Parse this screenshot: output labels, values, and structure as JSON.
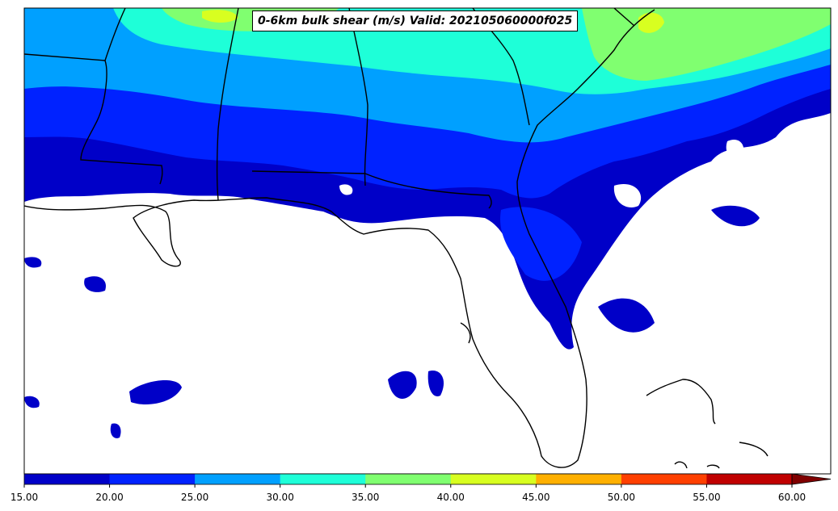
{
  "title": "0-6km bulk shear (m/s) Valid: 202105060000f025",
  "colorbar": {
    "ticks": [
      "15.00",
      "20.00",
      "25.00",
      "30.00",
      "35.00",
      "40.00",
      "45.00",
      "50.00",
      "55.00",
      "60.00"
    ],
    "colors": [
      "#0000c8",
      "#0022ff",
      "#00a0ff",
      "#1effd8",
      "#80ff70",
      "#d8ff20",
      "#ffb000",
      "#ff4000",
      "#c00000",
      "#800000"
    ],
    "extend": "max"
  },
  "legend_colors": {
    "land_outline": "#000000",
    "background": "#ffffff"
  }
}
